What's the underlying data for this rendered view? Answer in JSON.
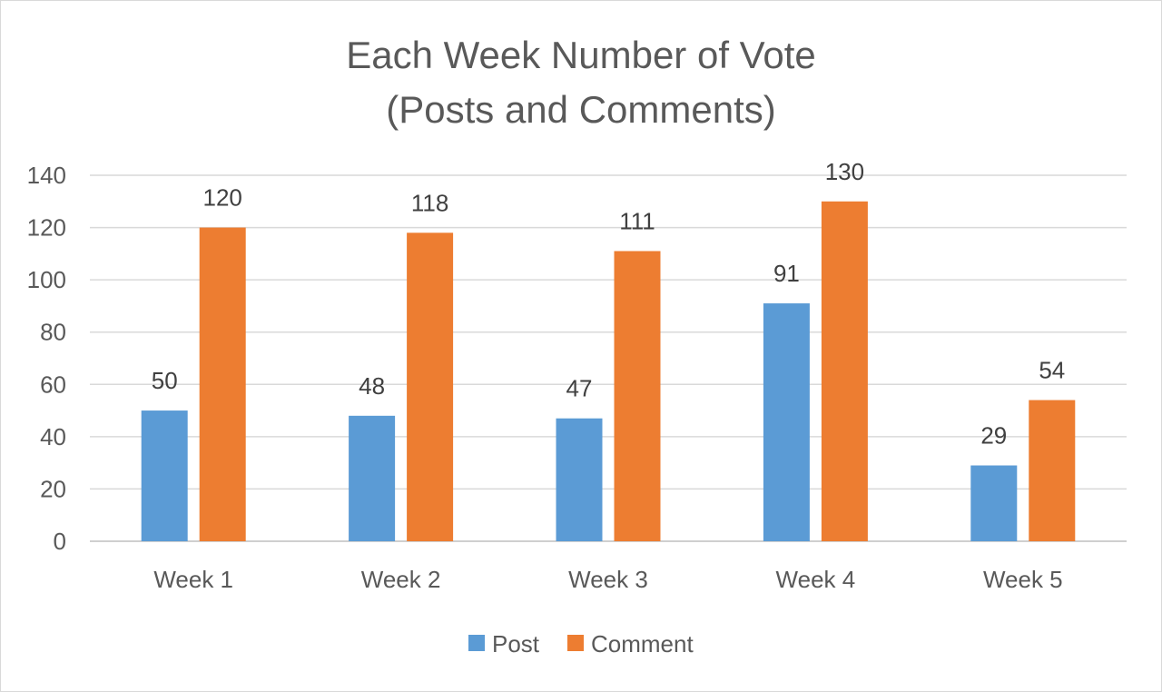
{
  "chart_data": {
    "type": "bar",
    "title": "Each Week Number of Vote",
    "subtitle": "(Posts and Comments)",
    "categories": [
      "Week 1",
      "Week 2",
      "Week 3",
      "Week 4",
      "Week 5"
    ],
    "series": [
      {
        "name": "Post",
        "color": "#5b9bd5",
        "values": [
          50,
          48,
          47,
          91,
          29
        ]
      },
      {
        "name": "Comment",
        "color": "#ed7d31",
        "values": [
          120,
          118,
          111,
          130,
          54
        ]
      }
    ],
    "ylim": [
      0,
      140
    ],
    "yticks": [
      "0",
      "20",
      "40",
      "60",
      "80",
      "100",
      "120",
      "140"
    ],
    "grid": true,
    "legend_position": "bottom",
    "data_labels": true
  }
}
